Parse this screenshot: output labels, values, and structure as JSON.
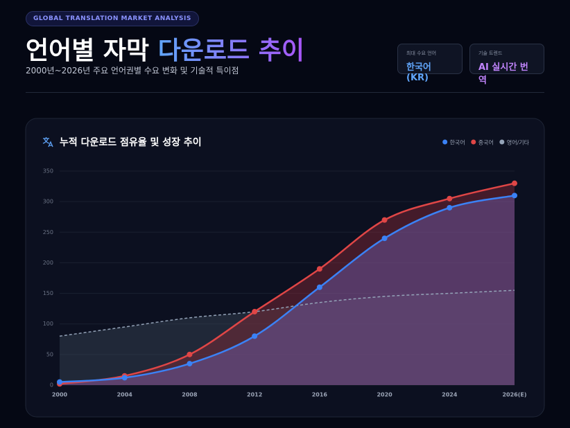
{
  "header": {
    "badge": "GLOBAL TRANSLATION MARKET ANALYSIS",
    "title_main": "언어별 자막",
    "title_accent": "다운로드 추이",
    "subtitle": "2000년~2026년 주요 언어권별 수요 변화 및 기술적 특이점",
    "cards": [
      {
        "label": "최대 수요 언어",
        "value": "한국어 (KR)"
      },
      {
        "label": "기술 트렌드",
        "value": "AI 실시간 번역"
      }
    ]
  },
  "chart_data": {
    "type": "line",
    "title": "누적 다운로드 점유율 및 성장 추이",
    "categories": [
      "2000",
      "2004",
      "2008",
      "2012",
      "2016",
      "2020",
      "2024",
      "2026(E)"
    ],
    "series": [
      {
        "name": "한국어",
        "color": "#3b82f6",
        "values": [
          5,
          12,
          35,
          80,
          160,
          240,
          290,
          310
        ],
        "fill": "#6d5fb0"
      },
      {
        "name": "중국어",
        "color": "#e04646",
        "values": [
          2,
          15,
          50,
          120,
          190,
          270,
          305,
          330
        ],
        "fill": "#8a2a38"
      },
      {
        "name": "영어/기타",
        "color": "#94a3b8",
        "values": [
          80,
          95,
          110,
          120,
          135,
          145,
          150,
          155
        ],
        "fill": "#3a4656",
        "dashed": true,
        "markers": false
      }
    ],
    "ylim": [
      0,
      350
    ],
    "yticks": [
      0,
      50,
      100,
      150,
      200,
      250,
      300,
      350
    ],
    "grid": true,
    "legend": "top-right"
  }
}
